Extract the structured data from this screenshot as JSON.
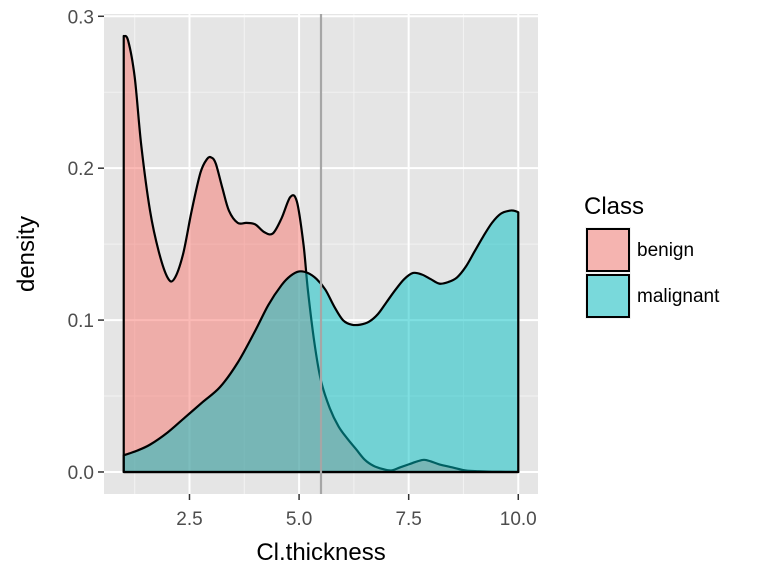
{
  "chart_data": {
    "type": "area",
    "xlabel": "Cl.thickness",
    "ylabel": "density",
    "xlim": [
      0.55,
      10.45
    ],
    "ylim": [
      -0.0145,
      0.3015
    ],
    "x_ticks": [
      2.5,
      5.0,
      7.5,
      10.0
    ],
    "x_tick_labels": [
      "2.5",
      "5.0",
      "7.5",
      "10.0"
    ],
    "y_ticks": [
      0.0,
      0.1,
      0.2,
      0.3
    ],
    "y_tick_labels": [
      "0.0",
      "0.1",
      "0.2",
      "0.3"
    ],
    "grid": true,
    "background": "#e5e5e5",
    "legend": {
      "title": "Class",
      "position": "right"
    },
    "vline": {
      "x": 5.5,
      "color": "#a6a6a6"
    },
    "series": [
      {
        "name": "benign",
        "fill": "#f8766d",
        "x": [
          1.0,
          1.1,
          1.25,
          1.4,
          1.6,
          1.8,
          2.0,
          2.15,
          2.35,
          2.55,
          2.75,
          2.9,
          3.0,
          3.1,
          3.25,
          3.4,
          3.6,
          3.8,
          4.0,
          4.2,
          4.4,
          4.6,
          4.8,
          4.95,
          5.1,
          5.2,
          5.35,
          5.5,
          5.7,
          5.9,
          6.1,
          6.3,
          6.5,
          6.7,
          6.9,
          7.1,
          7.3,
          7.5,
          7.7,
          7.85,
          8.0,
          8.2,
          8.5,
          8.8,
          9.1,
          9.4,
          9.7,
          10.0
        ],
        "y": [
          0.287,
          0.284,
          0.26,
          0.215,
          0.172,
          0.145,
          0.128,
          0.127,
          0.143,
          0.172,
          0.197,
          0.206,
          0.207,
          0.203,
          0.187,
          0.172,
          0.164,
          0.164,
          0.163,
          0.158,
          0.157,
          0.167,
          0.181,
          0.178,
          0.15,
          0.12,
          0.085,
          0.06,
          0.042,
          0.03,
          0.022,
          0.015,
          0.008,
          0.004,
          0.002,
          0.001,
          0.003,
          0.005,
          0.007,
          0.008,
          0.007,
          0.005,
          0.003,
          0.001,
          0.0005,
          0.0002,
          0.0001,
          0.0
        ]
      },
      {
        "name": "malignant",
        "fill": "#00bfc4",
        "x": [
          1.0,
          1.3,
          1.6,
          2.0,
          2.4,
          2.8,
          3.2,
          3.6,
          4.0,
          4.3,
          4.6,
          4.8,
          5.0,
          5.2,
          5.4,
          5.6,
          5.8,
          6.0,
          6.2,
          6.4,
          6.6,
          6.8,
          7.0,
          7.2,
          7.4,
          7.6,
          7.8,
          8.0,
          8.2,
          8.4,
          8.6,
          8.8,
          9.0,
          9.2,
          9.4,
          9.6,
          9.8,
          9.9,
          10.0
        ],
        "y": [
          0.011,
          0.014,
          0.018,
          0.026,
          0.036,
          0.046,
          0.056,
          0.072,
          0.093,
          0.11,
          0.123,
          0.129,
          0.132,
          0.131,
          0.127,
          0.12,
          0.109,
          0.1,
          0.097,
          0.097,
          0.099,
          0.104,
          0.112,
          0.12,
          0.127,
          0.131,
          0.13,
          0.127,
          0.124,
          0.125,
          0.128,
          0.135,
          0.145,
          0.155,
          0.164,
          0.17,
          0.172,
          0.172,
          0.171
        ]
      }
    ]
  }
}
